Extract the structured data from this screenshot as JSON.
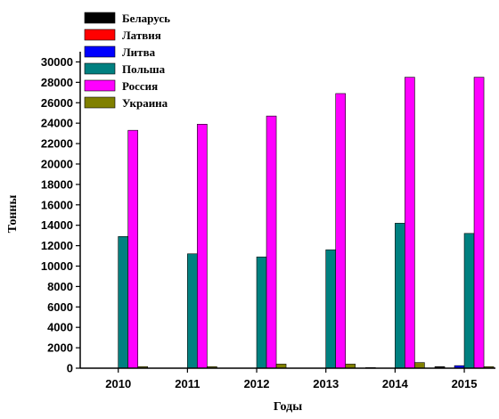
{
  "chart_data": {
    "type": "bar",
    "xlabel": "Годы",
    "ylabel": "Тонны",
    "categories": [
      "2010",
      "2011",
      "2012",
      "2013",
      "2014",
      "2015"
    ],
    "ylim": [
      0,
      31000
    ],
    "yticks": [
      0,
      2000,
      4000,
      6000,
      8000,
      10000,
      12000,
      14000,
      16000,
      18000,
      20000,
      22000,
      24000,
      26000,
      28000,
      30000
    ],
    "grid": false,
    "legend_position": "top-left",
    "series": [
      {
        "name": "Беларусь",
        "color": "#000000",
        "values": [
          0,
          0,
          0,
          0,
          60,
          150
        ]
      },
      {
        "name": "Латвия",
        "color": "#ff0000",
        "values": [
          0,
          0,
          0,
          0,
          0,
          0
        ]
      },
      {
        "name": "Литва",
        "color": "#0000ff",
        "values": [
          0,
          0,
          0,
          0,
          0,
          250
        ]
      },
      {
        "name": "Польша",
        "color": "#008080",
        "values": [
          12900,
          11200,
          10900,
          11600,
          14200,
          13200
        ]
      },
      {
        "name": "Россия",
        "color": "#ff00ff",
        "values": [
          23300,
          23900,
          24700,
          26900,
          28500,
          28500
        ]
      },
      {
        "name": "Украина",
        "color": "#808000",
        "values": [
          150,
          150,
          400,
          400,
          550,
          150
        ]
      }
    ]
  }
}
